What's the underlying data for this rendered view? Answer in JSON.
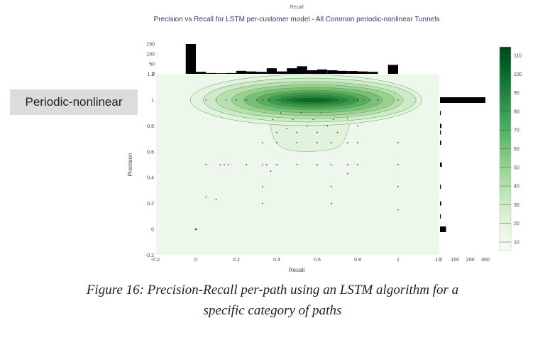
{
  "category_label": "Periodic-nonlinear",
  "caption": {
    "line1": "Figure 16: Precision-Recall per-path using an LSTM algorithm for a",
    "line2": "specific category of paths"
  },
  "chart_data": {
    "type": "scatter",
    "title": "Precision vs Recall for LSTM per-customer model - All Common periodic-nonlinear Tunnels",
    "top_axis_label": "Recall",
    "xlabel": "Recall",
    "ylabel": "Precision",
    "xlim": [
      -0.2,
      1.2
    ],
    "ylim": [
      -0.2,
      1.2
    ],
    "x_ticks": [
      -0.2,
      0,
      0.2,
      0.4,
      0.6,
      0.8,
      1,
      1.2
    ],
    "x_tick_labels": [
      "-0.2",
      "0",
      "0.2",
      "0.4",
      "0.6",
      "0.8",
      "1",
      "1.2"
    ],
    "y_ticks": [
      -0.2,
      0,
      0.2,
      0.4,
      0.6,
      0.8,
      1,
      1.2
    ],
    "y_tick_labels": [
      "-0.2",
      "0",
      "0.2",
      "0.4",
      "0.6",
      "0.8",
      "1",
      "1.2"
    ],
    "grid": false,
    "points": [
      {
        "x": 0.0,
        "y": 0.0
      },
      {
        "x": 0.05,
        "y": 0.25
      },
      {
        "x": 0.1,
        "y": 0.23
      },
      {
        "x": 0.05,
        "y": 0.5
      },
      {
        "x": 0.12,
        "y": 0.5
      },
      {
        "x": 0.14,
        "y": 0.5
      },
      {
        "x": 0.16,
        "y": 0.5
      },
      {
        "x": 0.25,
        "y": 0.5
      },
      {
        "x": 0.33,
        "y": 0.5
      },
      {
        "x": 0.35,
        "y": 0.5
      },
      {
        "x": 0.4,
        "y": 0.5
      },
      {
        "x": 0.5,
        "y": 0.5
      },
      {
        "x": 0.6,
        "y": 0.5
      },
      {
        "x": 0.67,
        "y": 0.5
      },
      {
        "x": 0.75,
        "y": 0.5
      },
      {
        "x": 0.8,
        "y": 0.5
      },
      {
        "x": 1.0,
        "y": 0.5
      },
      {
        "x": 0.33,
        "y": 0.33
      },
      {
        "x": 0.67,
        "y": 0.33
      },
      {
        "x": 1.0,
        "y": 0.33
      },
      {
        "x": 0.33,
        "y": 0.2
      },
      {
        "x": 0.67,
        "y": 0.2
      },
      {
        "x": 1.0,
        "y": 0.15
      },
      {
        "x": 0.37,
        "y": 0.45
      },
      {
        "x": 0.75,
        "y": 0.43
      },
      {
        "x": 0.33,
        "y": 0.67
      },
      {
        "x": 0.4,
        "y": 0.67
      },
      {
        "x": 0.5,
        "y": 0.67
      },
      {
        "x": 0.6,
        "y": 0.67
      },
      {
        "x": 0.67,
        "y": 0.67
      },
      {
        "x": 0.75,
        "y": 0.67
      },
      {
        "x": 0.8,
        "y": 0.67
      },
      {
        "x": 1.0,
        "y": 0.67
      },
      {
        "x": 0.4,
        "y": 0.75
      },
      {
        "x": 0.45,
        "y": 0.78
      },
      {
        "x": 0.5,
        "y": 0.75
      },
      {
        "x": 0.55,
        "y": 0.8
      },
      {
        "x": 0.6,
        "y": 0.75
      },
      {
        "x": 0.65,
        "y": 0.8
      },
      {
        "x": 0.7,
        "y": 0.75
      },
      {
        "x": 0.8,
        "y": 0.8
      },
      {
        "x": 0.38,
        "y": 0.85
      },
      {
        "x": 0.48,
        "y": 0.85
      },
      {
        "x": 0.58,
        "y": 0.85
      },
      {
        "x": 0.68,
        "y": 0.85
      },
      {
        "x": 0.75,
        "y": 0.86
      },
      {
        "x": 0.42,
        "y": 0.9
      },
      {
        "x": 0.52,
        "y": 0.9
      },
      {
        "x": 0.62,
        "y": 0.9
      },
      {
        "x": 0.05,
        "y": 1
      },
      {
        "x": 0.1,
        "y": 1
      },
      {
        "x": 0.15,
        "y": 1
      },
      {
        "x": 0.2,
        "y": 1
      },
      {
        "x": 0.25,
        "y": 1
      },
      {
        "x": 0.3,
        "y": 1
      },
      {
        "x": 0.33,
        "y": 1
      },
      {
        "x": 0.36,
        "y": 1
      },
      {
        "x": 0.4,
        "y": 1
      },
      {
        "x": 0.43,
        "y": 1
      },
      {
        "x": 0.45,
        "y": 1
      },
      {
        "x": 0.48,
        "y": 1
      },
      {
        "x": 0.5,
        "y": 1
      },
      {
        "x": 0.52,
        "y": 1
      },
      {
        "x": 0.55,
        "y": 1
      },
      {
        "x": 0.57,
        "y": 1
      },
      {
        "x": 0.6,
        "y": 1
      },
      {
        "x": 0.62,
        "y": 1
      },
      {
        "x": 0.65,
        "y": 1
      },
      {
        "x": 0.67,
        "y": 1
      },
      {
        "x": 0.7,
        "y": 1
      },
      {
        "x": 0.73,
        "y": 1
      },
      {
        "x": 0.75,
        "y": 1
      },
      {
        "x": 0.78,
        "y": 1
      },
      {
        "x": 0.8,
        "y": 1
      },
      {
        "x": 0.83,
        "y": 1
      },
      {
        "x": 0.86,
        "y": 1
      },
      {
        "x": 0.9,
        "y": 1
      },
      {
        "x": 1.0,
        "y": 1
      }
    ],
    "density_contours": {
      "center": {
        "x": 0.58,
        "y": 1.0
      },
      "levels": [
        10,
        20,
        30,
        40,
        50,
        60,
        70,
        80,
        90,
        100,
        110
      ]
    },
    "marginal_x": {
      "bins": [
        -0.025,
        0.025,
        0.075,
        0.125,
        0.175,
        0.225,
        0.275,
        0.325,
        0.375,
        0.425,
        0.475,
        0.525,
        0.575,
        0.625,
        0.675,
        0.725,
        0.775,
        0.825,
        0.875,
        0.925,
        0.975
      ],
      "bin_width": 0.05,
      "counts": [
        150,
        10,
        4,
        3,
        4,
        15,
        12,
        10,
        28,
        12,
        28,
        38,
        18,
        22,
        18,
        15,
        14,
        12,
        10,
        0,
        45
      ],
      "tick_labels": [
        "150",
        "100",
        "50",
        "0"
      ]
    },
    "marginal_y": {
      "bins": [
        0.0,
        0.1,
        0.2,
        0.33,
        0.5,
        0.67,
        0.75,
        0.8,
        0.9,
        1.0
      ],
      "counts": [
        40,
        4,
        8,
        6,
        12,
        8,
        6,
        10,
        5,
        300
      ],
      "tick_labels": [
        "0",
        "100",
        "200",
        "300"
      ]
    },
    "colorbar": {
      "tick_labels": [
        "10",
        "20",
        "30",
        "40",
        "50",
        "60",
        "70",
        "80",
        "90",
        "100",
        "110"
      ],
      "colors": [
        "#f7fcf5",
        "#e5f5e0",
        "#c7e9c0",
        "#a1d99b",
        "#74c476",
        "#41ab5d",
        "#238b45",
        "#006d2c",
        "#00441b"
      ]
    }
  }
}
